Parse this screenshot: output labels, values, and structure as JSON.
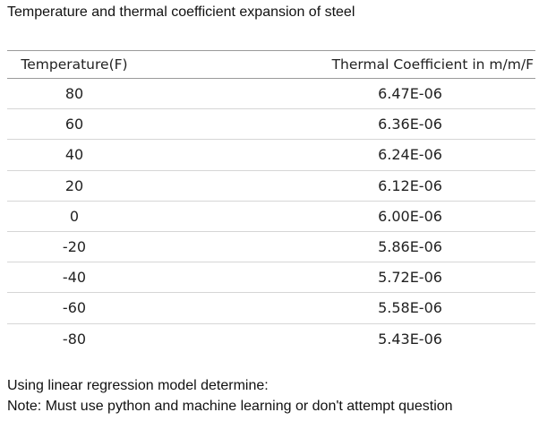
{
  "title": "Temperature and thermal coefficient expansion of steel",
  "table": {
    "headers": [
      "Temperature(F)",
      "Thermal Coefficient in m/m/F"
    ],
    "rows": [
      [
        "80",
        "6.47E-06"
      ],
      [
        "60",
        "6.36E-06"
      ],
      [
        "40",
        "6.24E-06"
      ],
      [
        "20",
        "6.12E-06"
      ],
      [
        "0",
        "6.00E-06"
      ],
      [
        "-20",
        "5.86E-06"
      ],
      [
        "-40",
        "5.72E-06"
      ],
      [
        "-60",
        "5.58E-06"
      ],
      [
        "-80",
        "5.43E-06"
      ]
    ]
  },
  "footer": {
    "line1": "Using linear regression model determine:",
    "line2": "Note: Must use python and machine learning or don't attempt question"
  }
}
